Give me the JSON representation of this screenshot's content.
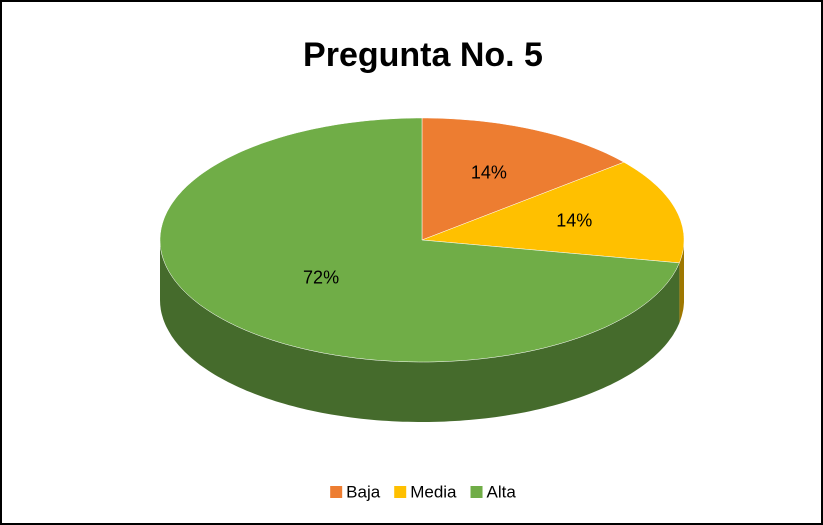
{
  "chart_data": {
    "type": "pie",
    "title": "Pregunta No. 5",
    "categories": [
      "Baja",
      "Media",
      "Alta"
    ],
    "values": [
      14,
      14,
      72
    ],
    "value_labels": [
      "14%",
      "14%",
      "72%"
    ],
    "colors": [
      "#ED7D31",
      "#FFC000",
      "#70AD47"
    ],
    "legend": "bottom"
  }
}
